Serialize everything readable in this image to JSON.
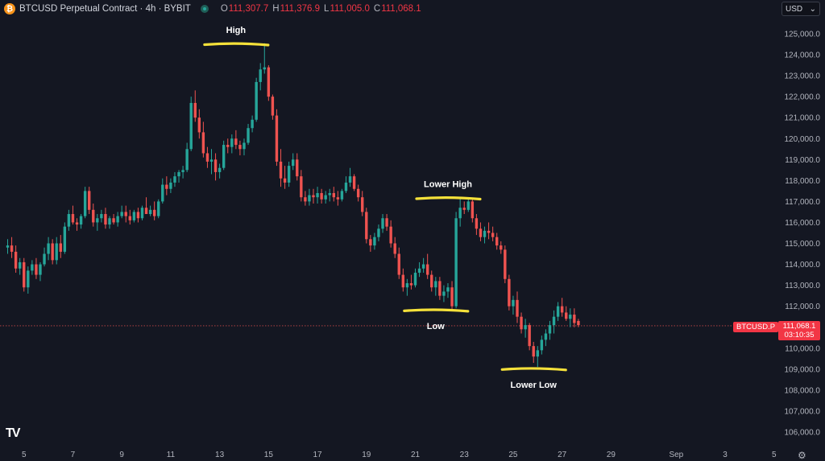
{
  "header": {
    "title": "BTCUSD Perpetual Contract · 4h · BYBIT",
    "symbol_icon": "bitcoin-icon",
    "ohlc": [
      {
        "label": "O",
        "value": "111,307.7"
      },
      {
        "label": "H",
        "value": "111,376.9"
      },
      {
        "label": "L",
        "value": "111,005.0"
      },
      {
        "label": "C",
        "value": "111,068.1"
      }
    ]
  },
  "currency": {
    "label": "USD",
    "icon": "chevron-down-icon"
  },
  "price_tag": {
    "symbol": "BTCUSD.P",
    "price": "111,068.1",
    "countdown": "03:10:35"
  },
  "colors": {
    "up": "#26a69a",
    "down": "#ef5350",
    "highlight": "#f5e13a",
    "background": "#141722"
  },
  "chart_data": {
    "type": "candlestick",
    "timeframe": "4h",
    "y_axis": {
      "min": 105500,
      "max": 125500,
      "ticks": [
        "106,000.0",
        "107,000.0",
        "108,000.0",
        "109,000.0",
        "110,000.0",
        "111,000.0",
        "112,000.0",
        "113,000.0",
        "114,000.0",
        "115,000.0",
        "116,000.0",
        "117,000.0",
        "118,000.0",
        "119,000.0",
        "120,000.0",
        "121,000.0",
        "122,000.0",
        "123,000.0",
        "124,000.0",
        "125,000.0"
      ],
      "tick_values": [
        106000,
        107000,
        108000,
        109000,
        110000,
        111000,
        112000,
        113000,
        114000,
        115000,
        116000,
        117000,
        118000,
        119000,
        120000,
        121000,
        122000,
        123000,
        124000,
        125000
      ]
    },
    "x_axis": {
      "labels": [
        "5",
        "7",
        "9",
        "11",
        "13",
        "15",
        "17",
        "19",
        "21",
        "23",
        "25",
        "27",
        "29",
        "Sep",
        "3",
        "5"
      ],
      "label_bar_index": [
        4,
        16,
        28,
        40,
        52,
        64,
        76,
        88,
        100,
        112,
        124,
        136,
        148,
        164,
        176,
        188
      ]
    },
    "last_price": 111068.1,
    "annotations": [
      {
        "text": "High",
        "bar": 56,
        "price": 124500,
        "label_pos": "above"
      },
      {
        "text": "Lower High",
        "bar": 108,
        "price": 117150,
        "label_pos": "above"
      },
      {
        "text": "Low",
        "bar": 105,
        "price": 111800,
        "label_pos": "below"
      },
      {
        "text": "Lower Low",
        "bar": 129,
        "price": 109000,
        "label_pos": "below"
      }
    ],
    "candles": [
      [
        114800,
        115200,
        114500,
        114900
      ],
      [
        114900,
        115300,
        114300,
        114600
      ],
      [
        114600,
        114900,
        113600,
        113800
      ],
      [
        113800,
        114300,
        113500,
        114100
      ],
      [
        114100,
        114300,
        112700,
        112900
      ],
      [
        112900,
        113900,
        112600,
        113700
      ],
      [
        113700,
        114200,
        113500,
        114000
      ],
      [
        114000,
        114300,
        113300,
        113500
      ],
      [
        113500,
        114100,
        113200,
        114000
      ],
      [
        114000,
        114800,
        113900,
        114500
      ],
      [
        114500,
        115300,
        114200,
        115000
      ],
      [
        115000,
        115200,
        114000,
        114200
      ],
      [
        114200,
        115300,
        114000,
        115000
      ],
      [
        115000,
        115400,
        114300,
        114600
      ],
      [
        114600,
        116000,
        114500,
        115800
      ],
      [
        115800,
        116600,
        115600,
        116400
      ],
      [
        116400,
        116800,
        115900,
        116000
      ],
      [
        116000,
        116200,
        115600,
        115900
      ],
      [
        115900,
        116400,
        115700,
        116300
      ],
      [
        116300,
        117700,
        116200,
        117500
      ],
      [
        117500,
        117700,
        116400,
        116600
      ],
      [
        116600,
        116900,
        115800,
        116000
      ],
      [
        116000,
        116400,
        115600,
        116200
      ],
      [
        116200,
        116600,
        116000,
        116400
      ],
      [
        116400,
        116700,
        115700,
        115900
      ],
      [
        115900,
        116300,
        115700,
        116200
      ],
      [
        116200,
        116400,
        115900,
        116000
      ],
      [
        116000,
        116500,
        115800,
        116300
      ],
      [
        116300,
        116800,
        116200,
        116500
      ],
      [
        116500,
        116800,
        116000,
        116300
      ],
      [
        116300,
        116600,
        115900,
        116100
      ],
      [
        116100,
        116600,
        116000,
        116500
      ],
      [
        116500,
        116700,
        116000,
        116200
      ],
      [
        116200,
        116800,
        116100,
        116700
      ],
      [
        116700,
        117200,
        116500,
        116400
      ],
      [
        116400,
        116800,
        116300,
        116600
      ],
      [
        116600,
        117000,
        116100,
        116300
      ],
      [
        116300,
        117100,
        116200,
        117000
      ],
      [
        117000,
        118100,
        116900,
        117800
      ],
      [
        117800,
        118200,
        117300,
        117600
      ],
      [
        117600,
        118100,
        117400,
        117900
      ],
      [
        117900,
        118400,
        117700,
        118200
      ],
      [
        118200,
        118500,
        117900,
        118400
      ],
      [
        118400,
        118700,
        118100,
        118500
      ],
      [
        118500,
        119800,
        118400,
        119500
      ],
      [
        119500,
        122000,
        119400,
        121700
      ],
      [
        121700,
        122300,
        120800,
        121000
      ],
      [
        121000,
        121400,
        120000,
        120300
      ],
      [
        120300,
        120800,
        119100,
        119300
      ],
      [
        119300,
        119600,
        118600,
        118900
      ],
      [
        118900,
        119500,
        118300,
        119000
      ],
      [
        119000,
        119300,
        118000,
        118400
      ],
      [
        118400,
        118800,
        118100,
        118600
      ],
      [
        118600,
        119900,
        118500,
        119700
      ],
      [
        119700,
        120000,
        119300,
        119600
      ],
      [
        119600,
        120200,
        119300,
        120000
      ],
      [
        120000,
        120400,
        119500,
        119700
      ],
      [
        119700,
        119900,
        119200,
        119500
      ],
      [
        119500,
        120000,
        119200,
        119800
      ],
      [
        119800,
        120700,
        119700,
        120500
      ],
      [
        120500,
        121100,
        120300,
        120900
      ],
      [
        120900,
        122900,
        120800,
        122700
      ],
      [
        122700,
        123600,
        122300,
        123300
      ],
      [
        123300,
        124550,
        123100,
        123400
      ],
      [
        123400,
        123500,
        121800,
        122000
      ],
      [
        122000,
        122100,
        120900,
        121100
      ],
      [
        121100,
        121400,
        118700,
        118900
      ],
      [
        118900,
        119500,
        117700,
        118100
      ],
      [
        118100,
        118700,
        117600,
        117900
      ],
      [
        117900,
        118900,
        117700,
        118700
      ],
      [
        118700,
        119300,
        118500,
        119000
      ],
      [
        119000,
        119300,
        118000,
        118200
      ],
      [
        118200,
        118500,
        117000,
        117200
      ],
      [
        117200,
        117500,
        116800,
        117000
      ],
      [
        117000,
        117600,
        116800,
        117300
      ],
      [
        117300,
        117600,
        116900,
        117200
      ],
      [
        117200,
        117700,
        116900,
        117400
      ],
      [
        117400,
        117600,
        116900,
        117100
      ],
      [
        117100,
        117500,
        116900,
        117300
      ],
      [
        117300,
        117600,
        117000,
        117400
      ],
      [
        117400,
        117700,
        117000,
        117200
      ],
      [
        117200,
        117500,
        116800,
        117100
      ],
      [
        117100,
        117600,
        117000,
        117500
      ],
      [
        117500,
        118200,
        117400,
        117900
      ],
      [
        117900,
        118600,
        117700,
        118200
      ],
      [
        118200,
        118300,
        117500,
        117600
      ],
      [
        117600,
        117800,
        117000,
        117200
      ],
      [
        117200,
        117500,
        116300,
        116500
      ],
      [
        116500,
        116700,
        115000,
        115200
      ],
      [
        115200,
        115400,
        114600,
        114900
      ],
      [
        114900,
        115500,
        114700,
        115300
      ],
      [
        115300,
        115900,
        115100,
        115700
      ],
      [
        115700,
        116400,
        115500,
        116200
      ],
      [
        116200,
        116400,
        115600,
        115800
      ],
      [
        115800,
        116100,
        114800,
        115000
      ],
      [
        115000,
        115300,
        114300,
        114500
      ],
      [
        114500,
        114800,
        113300,
        113500
      ],
      [
        113500,
        113800,
        112700,
        112900
      ],
      [
        112900,
        113300,
        112500,
        113100
      ],
      [
        113100,
        113500,
        112800,
        113000
      ],
      [
        113000,
        113800,
        112900,
        113600
      ],
      [
        113600,
        114100,
        113400,
        113800
      ],
      [
        113800,
        114300,
        113600,
        114000
      ],
      [
        114000,
        114500,
        113300,
        113500
      ],
      [
        113500,
        113700,
        112700,
        112900
      ],
      [
        112900,
        113400,
        112500,
        113200
      ],
      [
        113200,
        113400,
        112300,
        112500
      ],
      [
        112500,
        113000,
        112200,
        112700
      ],
      [
        112700,
        113100,
        112400,
        112900
      ],
      [
        112900,
        113200,
        111800,
        112000
      ],
      [
        112000,
        116500,
        111900,
        116200
      ],
      [
        116200,
        117150,
        115800,
        116700
      ],
      [
        116700,
        117000,
        116400,
        116600
      ],
      [
        116600,
        117150,
        116500,
        117000
      ],
      [
        117000,
        117100,
        116000,
        116200
      ],
      [
        116200,
        116400,
        115400,
        115700
      ],
      [
        115700,
        116000,
        115100,
        115300
      ],
      [
        115300,
        115800,
        115000,
        115600
      ],
      [
        115600,
        116000,
        115200,
        115500
      ],
      [
        115500,
        115800,
        115100,
        115300
      ],
      [
        115300,
        115500,
        114700,
        114900
      ],
      [
        114900,
        115100,
        114500,
        114700
      ],
      [
        114700,
        114900,
        113100,
        113300
      ],
      [
        113300,
        113500,
        111800,
        112000
      ],
      [
        112000,
        112500,
        111600,
        112300
      ],
      [
        112300,
        112700,
        111200,
        111500
      ],
      [
        111500,
        111700,
        110700,
        110900
      ],
      [
        110900,
        111400,
        110500,
        111100
      ],
      [
        111100,
        111200,
        109900,
        110100
      ],
      [
        110100,
        110300,
        109300,
        109600
      ],
      [
        109600,
        110100,
        109100,
        109900
      ],
      [
        109900,
        110600,
        109700,
        110400
      ],
      [
        110400,
        110900,
        110100,
        110700
      ],
      [
        110700,
        111300,
        110400,
        111100
      ],
      [
        111100,
        111800,
        110700,
        111500
      ],
      [
        111500,
        112200,
        111300,
        112000
      ],
      [
        112000,
        112400,
        111500,
        111700
      ],
      [
        111700,
        112000,
        111300,
        111400
      ],
      [
        111400,
        111900,
        111000,
        111600
      ],
      [
        111600,
        111900,
        111000,
        111200
      ],
      [
        111300,
        111400,
        111000,
        111100
      ]
    ]
  }
}
